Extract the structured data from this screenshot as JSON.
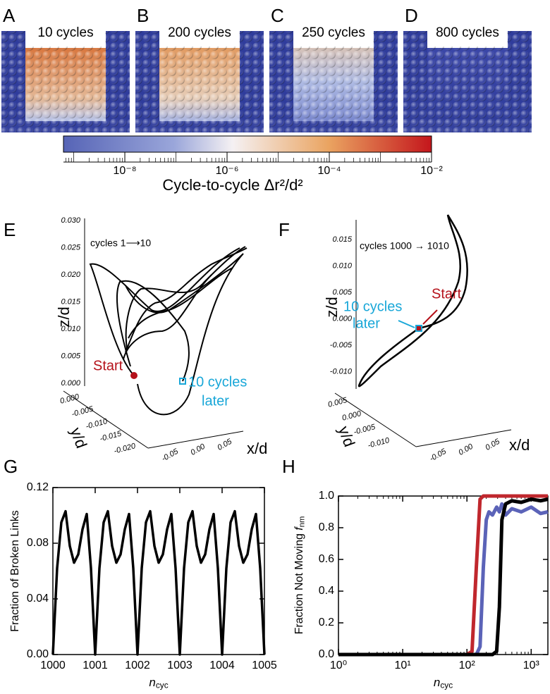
{
  "panels": [
    {
      "letter": "A",
      "title": "10 cycles"
    },
    {
      "letter": "B",
      "title": "200 cycles"
    },
    {
      "letter": "C",
      "title": "250 cycles"
    },
    {
      "letter": "D",
      "title": "800 cycles"
    }
  ],
  "colorbar": {
    "title": "Cycle-to-cycle Δr²/d²",
    "scale": "log",
    "xlim": [
      6.3e-10,
      0.01
    ],
    "xticks": [
      {
        "value": 1e-08,
        "label": "10⁻⁸"
      },
      {
        "value": 1e-06,
        "label": "10⁻⁶"
      },
      {
        "value": 0.0001,
        "label": "10⁻⁴"
      },
      {
        "value": 0.01,
        "label": "10⁻²"
      }
    ]
  },
  "panel_E": {
    "letter": "E",
    "annotation": "cycles  1⟶10",
    "start_label": "Start",
    "end_label": [
      "10 cycles",
      "later"
    ],
    "zlabel": "z/d",
    "ylabel": "y/d",
    "xlabel": "x/d",
    "zticks": [
      "0.030",
      "0.025",
      "0.020",
      "0.015",
      "0.010",
      "0.005",
      "0.000"
    ],
    "yticks": [
      "0.000",
      "-0.005",
      "-0.010",
      "-0.015",
      "-0.020"
    ],
    "xticks": [
      "-0.05",
      "0.00",
      "0.05"
    ]
  },
  "panel_F": {
    "letter": "F",
    "annotation": "cycles 1000 → 1010",
    "start_label": "Start",
    "end_label": [
      "10 cycles",
      "later"
    ],
    "zlabel": "z/d",
    "ylabel": "y/d",
    "xlabel": "x/d",
    "zticks": [
      "0.015",
      "0.010",
      "0.005",
      "0.000",
      "-0.005",
      "-0.010"
    ],
    "yticks": [
      "0.005",
      "0.000",
      "-0.005",
      "-0.010"
    ],
    "xticks": [
      "-0.05",
      "0.00",
      "0.05"
    ]
  },
  "chart_data": [
    {
      "type": "line",
      "panel": "G",
      "ylabel": "Fraction of Broken Links",
      "xlabel": {
        "symbol": "n",
        "sub": "cyc"
      },
      "xlim": [
        1000,
        1005
      ],
      "xticks": [
        1000,
        1001,
        1002,
        1003,
        1004,
        1005
      ],
      "ylim": [
        0,
        0.12
      ],
      "yticks": [
        {
          "value": 0,
          "label": "0.00"
        },
        {
          "value": 0.04,
          "label": "0.04"
        },
        {
          "value": 0.08,
          "label": "0.08"
        },
        {
          "value": 0.12,
          "label": "0.12"
        }
      ],
      "color": "#000000",
      "x": [
        1000,
        1000.1,
        1000.2,
        1000.3,
        1000.4,
        1000.5,
        1000.6,
        1000.7,
        1000.8,
        1000.9,
        1001,
        1001.1,
        1001.2,
        1001.3,
        1001.4,
        1001.5,
        1001.6,
        1001.7,
        1001.8,
        1001.9,
        1002,
        1002.1,
        1002.2,
        1002.3,
        1002.4,
        1002.5,
        1002.6,
        1002.7,
        1002.8,
        1002.9,
        1003,
        1003.1,
        1003.2,
        1003.3,
        1003.4,
        1003.5,
        1003.6,
        1003.7,
        1003.8,
        1003.9,
        1004,
        1004.1,
        1004.2,
        1004.3,
        1004.4,
        1004.5,
        1004.6,
        1004.7,
        1004.8,
        1004.9,
        1005
      ],
      "values": [
        0,
        0.062,
        0.095,
        0.103,
        0.078,
        0.066,
        0.072,
        0.09,
        0.101,
        0.062,
        0,
        0.062,
        0.095,
        0.103,
        0.078,
        0.066,
        0.072,
        0.09,
        0.101,
        0.062,
        0,
        0.062,
        0.095,
        0.103,
        0.078,
        0.066,
        0.072,
        0.09,
        0.101,
        0.062,
        0,
        0.062,
        0.095,
        0.103,
        0.078,
        0.066,
        0.072,
        0.09,
        0.101,
        0.062,
        0,
        0.062,
        0.095,
        0.103,
        0.078,
        0.066,
        0.072,
        0.09,
        0.101,
        0.062,
        0
      ]
    },
    {
      "type": "line",
      "panel": "H",
      "ylabel": {
        "text": "Fraction Not Moving ",
        "symbol": "f",
        "sub": "nm"
      },
      "xlabel": {
        "symbol": "n",
        "sub": "cyc"
      },
      "xscale": "log",
      "xlim": [
        1,
        1820
      ],
      "xticks": [
        {
          "value": 1,
          "label": "10⁰"
        },
        {
          "value": 10,
          "label": "10¹"
        },
        {
          "value": 100,
          "label": "10²"
        },
        {
          "value": 1000,
          "label": "10³"
        }
      ],
      "ylim": [
        0,
        1
      ],
      "yticks": [
        {
          "value": 0,
          "label": "0.0"
        },
        {
          "value": 0.2,
          "label": "0.2"
        },
        {
          "value": 0.4,
          "label": "0.4"
        },
        {
          "value": 0.6,
          "label": "0.6"
        },
        {
          "value": 0.8,
          "label": "0.8"
        },
        {
          "value": 1,
          "label": "1.0"
        }
      ],
      "x": [
        1,
        10,
        100,
        120,
        140,
        160,
        180,
        200,
        220,
        250,
        290,
        320,
        350,
        400,
        500,
        700,
        1000,
        1400,
        1820
      ],
      "series": [
        {
          "color": "#c0272d",
          "values": [
            0,
            0,
            0,
            0.02,
            0.55,
            0.98,
            1,
            1,
            1,
            1,
            1,
            1,
            1,
            1,
            1,
            1,
            1,
            1,
            1
          ]
        },
        {
          "color": "#5b63b8",
          "values": [
            0,
            0,
            0,
            0,
            0,
            0.05,
            0.55,
            0.85,
            0.9,
            0.88,
            0.93,
            0.9,
            0.95,
            0.88,
            0.92,
            0.9,
            0.93,
            0.89,
            0.9
          ]
        },
        {
          "color": "#000000",
          "values": [
            0,
            0,
            0,
            0,
            0,
            0,
            0,
            0,
            0,
            0,
            0.02,
            0.3,
            0.85,
            0.95,
            0.97,
            0.96,
            0.98,
            0.97,
            0.98
          ]
        }
      ]
    }
  ]
}
